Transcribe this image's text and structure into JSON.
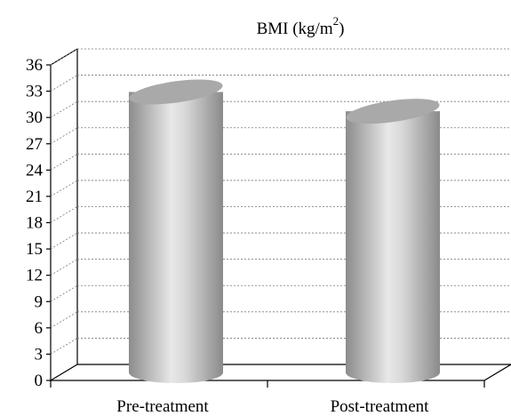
{
  "chart_data": {
    "type": "bar",
    "style": "3d-cylinder",
    "title": {
      "prefix": "BMI (kg/m",
      "superscript": "2",
      "suffix": ")"
    },
    "categories": [
      "Pre-treatment",
      "Post-treatment"
    ],
    "values": [
      32,
      29.8
    ],
    "ylim": [
      0,
      36
    ],
    "yticks": [
      "0",
      "3",
      "6",
      "9",
      "12",
      "15",
      "18",
      "21",
      "24",
      "27",
      "30",
      "33",
      "36"
    ],
    "grid": true,
    "legend": "none",
    "colors": {
      "bar_dark": "#8c8c8c",
      "bar_light": "#e6e6e6",
      "bar_top": "#a9a9a9",
      "grid": "#7a7a7a",
      "axis": "#000000"
    }
  }
}
